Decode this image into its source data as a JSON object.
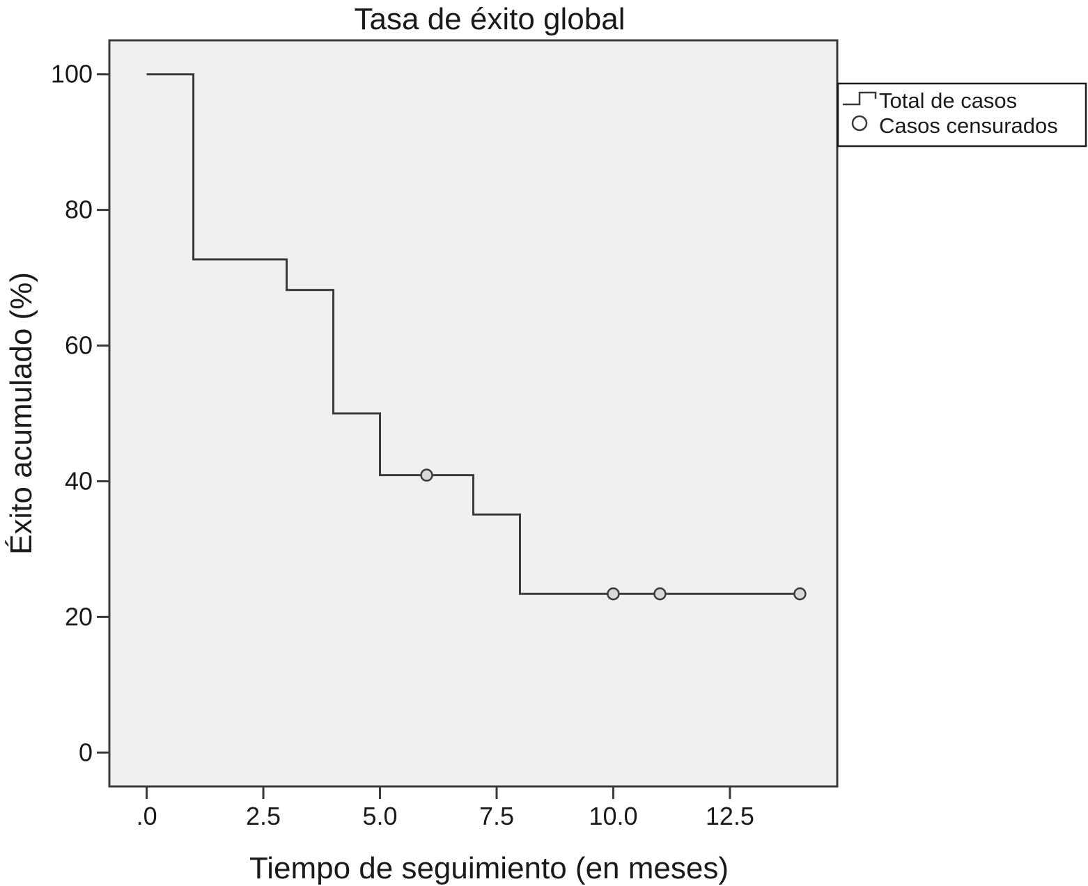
{
  "chart_data": {
    "type": "line",
    "step": true,
    "title": "Tasa de éxito global",
    "xlabel": "Tiempo de seguimiento (en meses)",
    "ylabel": "Éxito acumulado (%)",
    "xlim": [
      -0.8,
      14.8
    ],
    "ylim": [
      -5,
      105
    ],
    "x_ticks": [
      0,
      2.5,
      5,
      7.5,
      10,
      12.5
    ],
    "x_tick_labels": [
      ".0",
      "2.5",
      "5.0",
      "7.5",
      "10.0",
      "12.5"
    ],
    "y_ticks": [
      0,
      20,
      40,
      60,
      80,
      100
    ],
    "y_tick_labels": [
      "0",
      "20",
      "40",
      "60",
      "80",
      "100"
    ],
    "grid": false,
    "legend_position": "outside-right-top",
    "series": [
      {
        "name": "Total de casos",
        "x": [
          0,
          1,
          3,
          4,
          5,
          7,
          8,
          14
        ],
        "y": [
          100,
          72.7,
          68.2,
          50.0,
          40.9,
          35.1,
          23.4,
          23.4
        ]
      }
    ],
    "censored": {
      "name": "Casos censurados",
      "x": [
        6,
        10,
        11,
        14
      ],
      "y": [
        40.9,
        23.4,
        23.4,
        23.4
      ]
    },
    "legend": [
      "Total de casos",
      "Casos censurados"
    ],
    "colors": {
      "plot_background": "#f0f0f0",
      "frame": "#3a3a3a",
      "line": "#3a3a3a"
    }
  }
}
